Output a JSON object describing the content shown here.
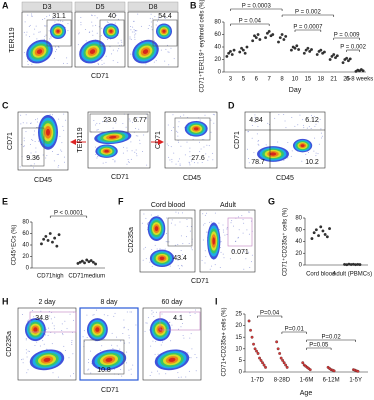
{
  "panels": {
    "A": {
      "label": "A",
      "plots": [
        {
          "title": "D3",
          "value": "31.1"
        },
        {
          "title": "D5",
          "value": "40"
        },
        {
          "title": "D8",
          "value": "54.4"
        }
      ],
      "y_label": "TER119",
      "x_label": "CD71"
    },
    "B": {
      "label": "B",
      "y_label": "CD71⁺TER119⁺ erythroid cells (%)",
      "x_label": "Day",
      "categories": [
        "3",
        "5",
        "6",
        "7",
        "8",
        "10",
        "15",
        "18",
        "21",
        "25",
        "6-8 weeks"
      ],
      "ylim": [
        0,
        80
      ],
      "yticks": [
        0,
        20,
        40,
        60,
        80
      ],
      "points": [
        [
          25,
          30,
          33,
          28,
          35
        ],
        [
          32,
          38,
          35,
          30,
          40
        ],
        [
          50,
          58,
          55,
          60,
          52
        ],
        [
          55,
          62,
          65,
          58,
          60
        ],
        [
          48,
          55,
          60,
          52,
          57
        ],
        [
          35,
          40,
          38,
          42,
          36
        ],
        [
          30,
          35,
          38,
          33,
          36
        ],
        [
          28,
          33,
          35,
          30,
          32
        ],
        [
          20,
          25,
          28,
          23,
          26
        ],
        [
          15,
          20,
          22,
          18,
          21
        ],
        [
          1,
          3,
          2,
          4,
          2
        ]
      ],
      "annotations": [
        "P = 0.04",
        "P = 0.0003",
        "P = 0.002",
        "P = 0.0007",
        "P = 0.009",
        "P = 0.002"
      ]
    },
    "C": {
      "label": "C",
      "plot1": {
        "value": "9.36",
        "y_label": "CD71",
        "x_label": "CD45"
      },
      "plot2": {
        "values": [
          "23.0",
          "6.77"
        ],
        "y_label": "TER119",
        "x_label": "CD71"
      },
      "plot3": {
        "value": "27.6",
        "y_label": "CD71",
        "x_label": "CD45"
      }
    },
    "D": {
      "label": "D",
      "values": [
        "4.84",
        "6.12",
        "78.7",
        "10.2"
      ],
      "y_label": "CD71",
      "x_label": "CD45"
    },
    "E": {
      "label": "E",
      "y_label": "CD45⁺ECs (%)",
      "categories": [
        "CD71high",
        "CD71medium"
      ],
      "ylim": [
        0,
        80
      ],
      "yticks": [
        0,
        20,
        40,
        60,
        80
      ],
      "points": [
        [
          42,
          50,
          55,
          48,
          60,
          45,
          52,
          38,
          58
        ],
        [
          8,
          10,
          12,
          9,
          14,
          11,
          13,
          10,
          7
        ]
      ],
      "annotation": "P < 0.0001"
    },
    "F": {
      "label": "F",
      "plots": [
        {
          "title": "Cord blood",
          "value": "43.4"
        },
        {
          "title": "Adult",
          "value": "0.071"
        }
      ],
      "y_label": "CD235a",
      "x_label": "CD71"
    },
    "G": {
      "label": "G",
      "y_label": "CD71⁺CD235a⁺ cells (%)",
      "categories": [
        "Cord blood",
        "Adult (PBMCs)"
      ],
      "ylim": [
        0,
        80
      ],
      "yticks": [
        0,
        20,
        40,
        60,
        80
      ],
      "points": [
        [
          45,
          55,
          60,
          50,
          65,
          58,
          52,
          48,
          62
        ],
        [
          1,
          0.5,
          1.5,
          0.8,
          1.2,
          0.6,
          1,
          0.7
        ]
      ]
    },
    "H": {
      "label": "H",
      "plots": [
        {
          "title": "2 day",
          "value": "34.8"
        },
        {
          "title": "8 day",
          "value": "10.8"
        },
        {
          "title": "60 day",
          "value": "4.1"
        }
      ],
      "y_label": "CD235a",
      "x_label": "CD71"
    },
    "I": {
      "label": "I",
      "y_label": "CD71+CD235a+ cells (%)",
      "x_label": "Age",
      "categories": [
        "1-7D",
        "8-28D",
        "1-6M",
        "6-12M",
        "1-5Y"
      ],
      "ylim": [
        0,
        25
      ],
      "yticks": [
        0,
        5,
        10,
        15,
        20,
        25
      ],
      "points": [
        [
          22,
          18,
          15,
          12,
          10,
          9,
          8,
          6,
          5,
          4,
          3,
          2
        ],
        [
          13,
          10,
          8,
          6,
          5,
          4,
          3,
          2
        ],
        [
          4,
          3,
          2.5,
          2,
          1.5,
          1
        ],
        [
          2,
          1.5,
          1,
          0.8,
          0.5
        ],
        [
          1,
          0.8,
          0.5,
          0.3
        ]
      ],
      "annotations": [
        "P=0.04",
        "P=0.01",
        "P=0.05",
        "P=0.02"
      ]
    }
  }
}
